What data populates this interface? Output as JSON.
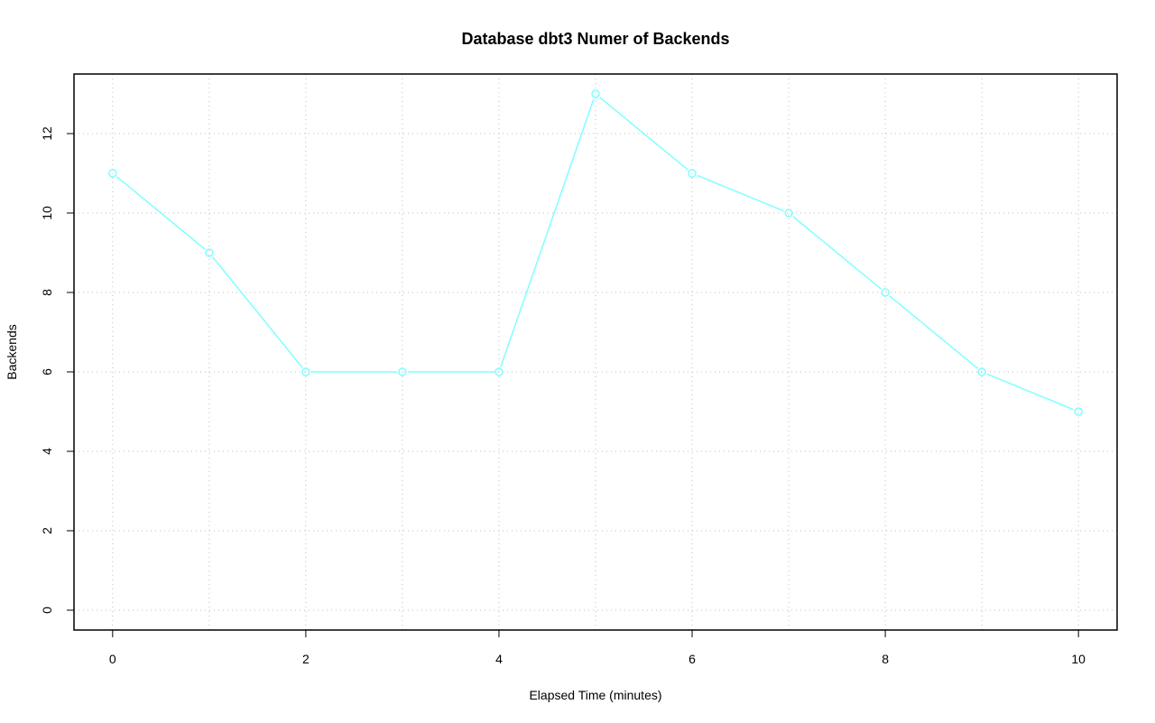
{
  "chart_data": {
    "type": "line",
    "title": "Database dbt3 Numer of Backends",
    "xlabel": "Elapsed Time (minutes)",
    "ylabel": "Backends",
    "x": [
      0,
      1,
      2,
      3,
      4,
      5,
      6,
      7,
      8,
      9,
      10
    ],
    "series": [
      {
        "values": [
          11,
          9,
          6,
          6,
          6,
          13,
          11,
          10,
          8,
          6,
          5
        ],
        "color": "#7fffff"
      }
    ],
    "xlim": [
      -0.4,
      10.4
    ],
    "ylim": [
      -0.5,
      13.5
    ],
    "xticks": [
      0,
      2,
      4,
      6,
      8,
      10
    ],
    "yticks": [
      0,
      2,
      4,
      6,
      8,
      10,
      12
    ],
    "xgrid": [
      0,
      1,
      2,
      3,
      4,
      5,
      6,
      7,
      8,
      9,
      10
    ],
    "ygrid": [
      0,
      2,
      4,
      6,
      8,
      10,
      12
    ],
    "grid": true,
    "marker": "open-circle"
  }
}
